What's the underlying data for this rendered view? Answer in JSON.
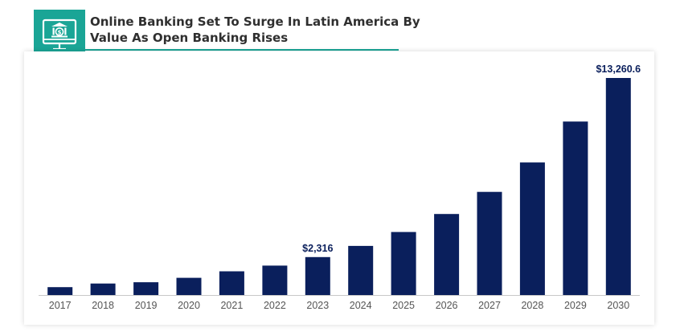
{
  "header": {
    "title_line1": "Online Banking Set To Surge In Latin America By",
    "title_line2": "Value As Open Banking Rises",
    "icon": "bank-dollar-icon"
  },
  "colors": {
    "bar": "#0a1f5c",
    "accent": "#1aa596",
    "axis": "#c8c8c8",
    "tick_text": "#555555",
    "label_text": "#0a1f5c",
    "title_text": "#2f2f2f"
  },
  "chart_data": {
    "type": "bar",
    "categories": [
      "2017",
      "2018",
      "2019",
      "2020",
      "2021",
      "2022",
      "2023",
      "2024",
      "2025",
      "2026",
      "2027",
      "2028",
      "2029",
      "2030"
    ],
    "values": [
      480,
      700,
      780,
      1050,
      1450,
      1800,
      2316,
      3000,
      3850,
      4950,
      6300,
      8100,
      10600,
      13260.6
    ],
    "data_labels": [
      "",
      "",
      "",
      "",
      "",
      "",
      "$2,316",
      "",
      "",
      "",
      "",
      "",
      "",
      "$13,260.6"
    ],
    "title": "",
    "xlabel": "",
    "ylabel": "",
    "ylim": [
      0,
      13260.6
    ],
    "grid": false,
    "legend": "none"
  }
}
